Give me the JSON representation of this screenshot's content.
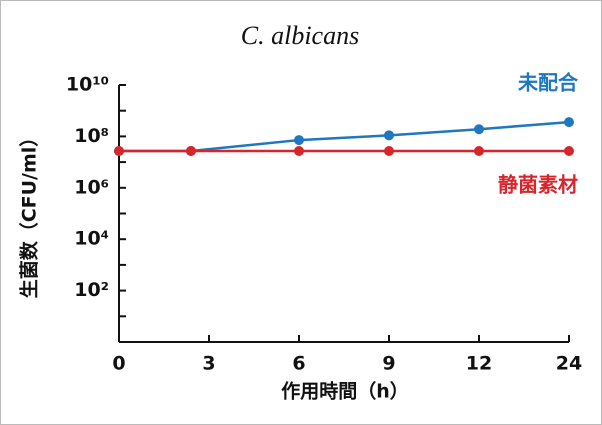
{
  "chart_data": {
    "type": "line",
    "title": "C. albicans",
    "x": [
      0,
      2.4,
      6,
      9,
      12,
      24
    ],
    "series": [
      {
        "name": "未配合",
        "color": "#1f77c0",
        "values": [
          27000000,
          27000000,
          72000000,
          110000000,
          190000000,
          360000000
        ]
      },
      {
        "name": "静菌素材",
        "color": "#d7262b",
        "values": [
          27000000,
          27000000,
          27000000,
          27000000,
          27000000,
          27000000
        ]
      }
    ],
    "xlabel": "作用時間（h）",
    "ylabel": "生菌数（CFU/ml）",
    "xticks": [
      0,
      3,
      6,
      9,
      12,
      24
    ],
    "ylim": [
      1,
      10000000000
    ],
    "yscale": "log",
    "yticks": [
      {
        "value": 100,
        "label": "10²"
      },
      {
        "value": 10000,
        "label": "10⁴"
      },
      {
        "value": 1000000,
        "label": "10⁶"
      },
      {
        "value": 100000000,
        "label": "10⁸"
      },
      {
        "value": 10000000000,
        "label": "10¹⁰"
      }
    ],
    "yminorticks": [
      10,
      1000,
      100000,
      10000000,
      1000000000
    ]
  }
}
